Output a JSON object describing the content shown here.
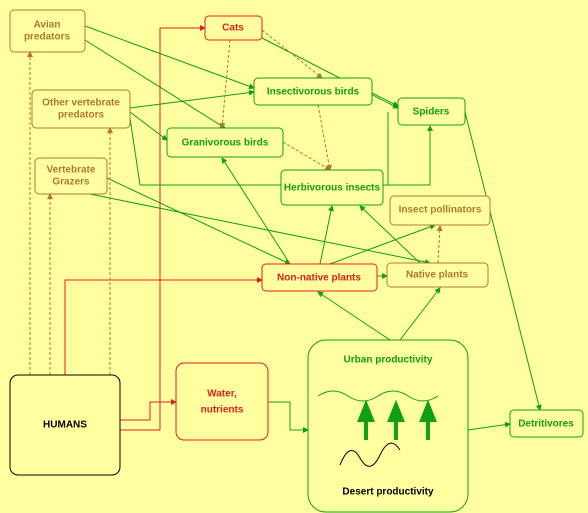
{
  "nodes": [
    {
      "label": [
        "Avian",
        "predators"
      ]
    },
    {
      "label": [
        "Cats"
      ]
    },
    {
      "label": [
        "Other vertebrate",
        "predators"
      ]
    },
    {
      "label": [
        "Insectivorous birds"
      ]
    },
    {
      "label": [
        "Spiders"
      ]
    },
    {
      "label": [
        "Granivorous birds"
      ]
    },
    {
      "label": [
        "Vertebrate",
        "Grazers"
      ]
    },
    {
      "label": [
        "Herbivorous insects"
      ]
    },
    {
      "label": [
        "Insect pollinators"
      ]
    },
    {
      "label": [
        "Non-native plants"
      ]
    },
    {
      "label": [
        "Native plants"
      ]
    },
    {
      "label": [
        "HUMANS"
      ]
    },
    {
      "label": [
        "Water,",
        "nutrients"
      ]
    },
    {
      "label": [
        "Urban productivity"
      ]
    },
    {
      "label": [
        "Desert productivity"
      ]
    },
    {
      "label": [
        "Detritivores"
      ]
    }
  ]
}
